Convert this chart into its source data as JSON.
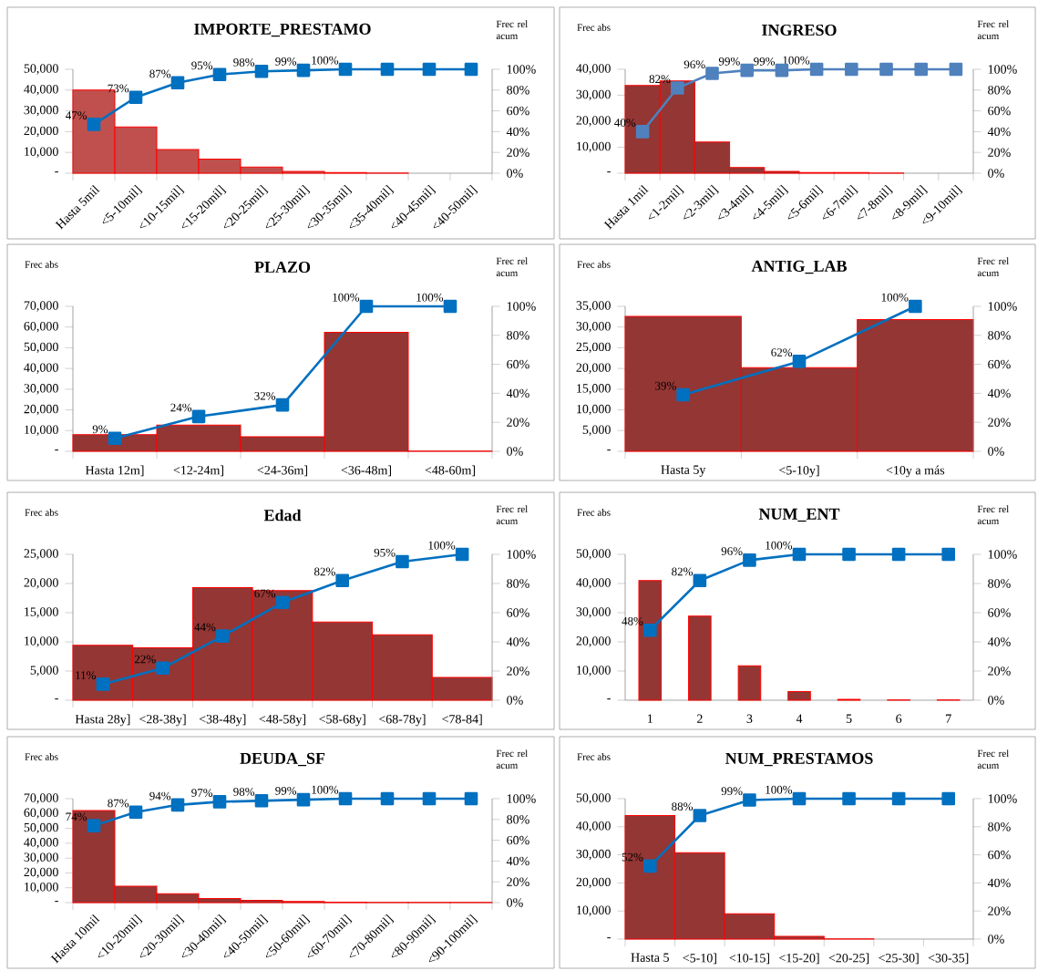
{
  "chart_data": [
    {
      "type": "bar",
      "title": "IMPORTE_PRESTAMO",
      "y2label": "Frec rel acum",
      "marker": "square",
      "categories": [
        "Hasta 5mil",
        "<5-10mil]",
        "<10-15mil]",
        "<15-20mil]",
        "<20-25mil]",
        "<25-30mil]",
        "<30-35mil]",
        "<35-40mil]",
        "<40-45mil]",
        "<40-50mil]"
      ],
      "series": [
        {
          "type": "bar",
          "color": "#c0504d",
          "values": [
            40000,
            22300,
            11400,
            6800,
            2900,
            900,
            300,
            100,
            0,
            0
          ]
        },
        {
          "type": "line",
          "axis": "y2",
          "color": "#0070c0",
          "values": [
            47,
            73,
            87,
            95,
            98,
            99,
            100,
            100,
            100,
            100
          ],
          "value_labels": [
            "47%",
            "73%",
            "87%",
            "95%",
            "98%",
            "99%",
            "100%",
            null,
            null,
            null
          ]
        }
      ],
      "ylim": [
        0,
        50000
      ],
      "yticks": [
        {
          "value": 0,
          "label": "-"
        },
        {
          "value": 10000,
          "label": "10,000"
        },
        {
          "value": 20000,
          "label": "20,000"
        },
        {
          "value": 30000,
          "label": "30,000"
        },
        {
          "value": 40000,
          "label": "40,000"
        },
        {
          "value": 50000,
          "label": "50,000"
        }
      ],
      "y2lim": [
        0,
        100
      ],
      "y2ticks": [
        {
          "value": 0,
          "label": "0%"
        },
        {
          "value": 20,
          "label": "20%"
        },
        {
          "value": 40,
          "label": "40%"
        },
        {
          "value": 60,
          "label": "60%"
        },
        {
          "value": 80,
          "label": "80%"
        },
        {
          "value": 100,
          "label": "100%"
        }
      ]
    },
    {
      "type": "bar",
      "title": "INGRESO",
      "ylabel": "Frec abs",
      "y2label": "Frec rel acum",
      "marker": "square",
      "categories": [
        "Hasta 1mil",
        "<1-2mil]",
        "<2-3mil]",
        "<3-4mil]",
        "<4-5mil]",
        "<5-6mil]",
        "<6-7mil]",
        "<7-8mil]",
        "<8-9mil]",
        "<9-10mil]"
      ],
      "series": [
        {
          "type": "bar",
          "color": "#943634",
          "values": [
            33800,
            35500,
            12000,
            2200,
            700,
            300,
            300,
            100,
            0,
            0
          ]
        },
        {
          "type": "line",
          "axis": "y2",
          "color": "#4f81bd",
          "values": [
            40,
            82,
            96,
            99,
            99,
            100,
            100,
            100,
            100,
            100
          ],
          "value_labels": [
            "40%",
            "82%",
            "96%",
            "99%",
            "99%",
            "100%",
            null,
            null,
            null,
            null
          ]
        }
      ],
      "ylim": [
        0,
        40000
      ],
      "yticks": [
        {
          "value": 0,
          "label": "-"
        },
        {
          "value": 10000,
          "label": "10,000"
        },
        {
          "value": 20000,
          "label": "20,000"
        },
        {
          "value": 30000,
          "label": "30,000"
        },
        {
          "value": 40000,
          "label": "40,000"
        }
      ],
      "y2lim": [
        0,
        100
      ],
      "y2ticks": [
        {
          "value": 0,
          "label": "0%"
        },
        {
          "value": 20,
          "label": "20%"
        },
        {
          "value": 40,
          "label": "40%"
        },
        {
          "value": 60,
          "label": "60%"
        },
        {
          "value": 80,
          "label": "80%"
        },
        {
          "value": 100,
          "label": "100%"
        }
      ]
    },
    {
      "type": "bar",
      "title": "PLAZO",
      "ylabel": "Frec abs",
      "y2label": "Frec rel acum",
      "marker": "square",
      "categories": [
        "Hasta 12m]",
        "<12-24m]",
        "<24-36m]",
        "<36-48m]",
        "<48-60m]"
      ],
      "series": [
        {
          "type": "bar",
          "color": "#943634",
          "values": [
            8000,
            12700,
            7000,
            57500,
            100
          ]
        },
        {
          "type": "line",
          "axis": "y2",
          "color": "#0070c0",
          "values": [
            9,
            24,
            32,
            100,
            100
          ],
          "value_labels": [
            "9%",
            "24%",
            "32%",
            "100%",
            "100%"
          ]
        }
      ],
      "ylim": [
        0,
        70000
      ],
      "yticks": [
        {
          "value": 0,
          "label": "-"
        },
        {
          "value": 10000,
          "label": "10,000"
        },
        {
          "value": 20000,
          "label": "20,000"
        },
        {
          "value": 30000,
          "label": "30,000"
        },
        {
          "value": 40000,
          "label": "40,000"
        },
        {
          "value": 50000,
          "label": "50,000"
        },
        {
          "value": 60000,
          "label": "60,000"
        },
        {
          "value": 70000,
          "label": "70,000"
        }
      ],
      "y2lim": [
        0,
        100
      ],
      "y2ticks": [
        {
          "value": 0,
          "label": "0%"
        },
        {
          "value": 20,
          "label": "20%"
        },
        {
          "value": 40,
          "label": "40%"
        },
        {
          "value": 60,
          "label": "60%"
        },
        {
          "value": 80,
          "label": "80%"
        },
        {
          "value": 100,
          "label": "100%"
        }
      ]
    },
    {
      "type": "bar",
      "title": "ANTIG_LAB",
      "ylabel": "Frec abs",
      "y2label": "Frec rel acum",
      "marker": "square",
      "categories": [
        "Hasta 5y",
        "<5-10y]",
        "<10y a más"
      ],
      "series": [
        {
          "type": "bar",
          "color": "#943634",
          "values": [
            32600,
            20200,
            31800
          ]
        },
        {
          "type": "line",
          "axis": "y2",
          "color": "#0070c0",
          "values": [
            39,
            62,
            100
          ],
          "value_labels": [
            "39%",
            "62%",
            "100%"
          ]
        }
      ],
      "ylim": [
        0,
        35000
      ],
      "yticks": [
        {
          "value": 0,
          "label": "-"
        },
        {
          "value": 5000,
          "label": "5,000"
        },
        {
          "value": 10000,
          "label": "10,000"
        },
        {
          "value": 15000,
          "label": "15,000"
        },
        {
          "value": 20000,
          "label": "20,000"
        },
        {
          "value": 25000,
          "label": "25,000"
        },
        {
          "value": 30000,
          "label": "30,000"
        },
        {
          "value": 35000,
          "label": "35,000"
        }
      ],
      "y2lim": [
        0,
        100
      ],
      "y2ticks": [
        {
          "value": 0,
          "label": "0%"
        },
        {
          "value": 20,
          "label": "20%"
        },
        {
          "value": 40,
          "label": "40%"
        },
        {
          "value": 60,
          "label": "60%"
        },
        {
          "value": 80,
          "label": "80%"
        },
        {
          "value": 100,
          "label": "100%"
        }
      ]
    },
    {
      "type": "bar",
      "title": "Edad",
      "ylabel": "Frec abs",
      "y2label": "Frec rel acum",
      "marker": "square",
      "categories": [
        "Hasta 28y]",
        "<28-38y]",
        "<38-48y]",
        "<48-58y]",
        "<58-68y]",
        "<68-78y]",
        "<78-84]"
      ],
      "series": [
        {
          "type": "bar",
          "color": "#943634",
          "values": [
            9400,
            9000,
            19300,
            18800,
            13400,
            11200,
            3900
          ]
        },
        {
          "type": "line",
          "axis": "y2",
          "color": "#0070c0",
          "values": [
            11,
            22,
            44,
            67,
            82,
            95,
            100
          ],
          "value_labels": [
            "11%",
            "22%",
            "44%",
            "67%",
            "82%",
            "95%",
            "100%"
          ]
        }
      ],
      "ylim": [
        0,
        25000
      ],
      "yticks": [
        {
          "value": 0,
          "label": "-"
        },
        {
          "value": 5000,
          "label": "5,000"
        },
        {
          "value": 10000,
          "label": "10,000"
        },
        {
          "value": 15000,
          "label": "15,000"
        },
        {
          "value": 20000,
          "label": "20,000"
        },
        {
          "value": 25000,
          "label": "25,000"
        }
      ],
      "y2lim": [
        0,
        100
      ],
      "y2ticks": [
        {
          "value": 0,
          "label": "0%"
        },
        {
          "value": 20,
          "label": "20%"
        },
        {
          "value": 40,
          "label": "40%"
        },
        {
          "value": 60,
          "label": "60%"
        },
        {
          "value": 80,
          "label": "80%"
        },
        {
          "value": 100,
          "label": "100%"
        }
      ]
    },
    {
      "type": "bar",
      "title": "NUM_ENT",
      "ylabel": "Frec abs",
      "y2label": "Frec rel acum",
      "marker": "square",
      "x": [
        1,
        2,
        3,
        4,
        5,
        6,
        7
      ],
      "xlim": [
        0.5,
        7.5
      ],
      "xticks": [
        1,
        2,
        3,
        4,
        5,
        6,
        7
      ],
      "series": [
        {
          "type": "bar",
          "color": "#943634",
          "values": [
            41000,
            28800,
            11800,
            3000,
            300,
            100,
            100
          ]
        },
        {
          "type": "line",
          "axis": "y2",
          "color": "#0070c0",
          "values": [
            48,
            82,
            96,
            100,
            100,
            100,
            100
          ],
          "value_labels": [
            "48%",
            "82%",
            "96%",
            "100%",
            null,
            null,
            null
          ]
        }
      ],
      "ylim": [
        0,
        50000
      ],
      "yticks": [
        {
          "value": 0,
          "label": "-"
        },
        {
          "value": 10000,
          "label": "10,000"
        },
        {
          "value": 20000,
          "label": "20,000"
        },
        {
          "value": 30000,
          "label": "30,000"
        },
        {
          "value": 40000,
          "label": "40,000"
        },
        {
          "value": 50000,
          "label": "50,000"
        }
      ],
      "y2lim": [
        0,
        100
      ],
      "y2ticks": [
        {
          "value": 0,
          "label": "0%"
        },
        {
          "value": 20,
          "label": "20%"
        },
        {
          "value": 40,
          "label": "40%"
        },
        {
          "value": 60,
          "label": "60%"
        },
        {
          "value": 80,
          "label": "80%"
        },
        {
          "value": 100,
          "label": "100%"
        }
      ]
    },
    {
      "type": "bar",
      "title": "DEUDA_SF",
      "ylabel": "Frec abs",
      "y2label": "Frec rel acum",
      "marker": "square",
      "categories": [
        "Hasta 10mil",
        "<10-20mil]",
        "<20-30mil]",
        "<30-40mil]",
        "<40-50mil]",
        "<50-60mil]",
        "<60-70mil]",
        "<70-80mil]",
        "<80-90mil]",
        "<90-100mil]"
      ],
      "series": [
        {
          "type": "bar",
          "color": "#943634",
          "values": [
            62000,
            11000,
            6000,
            2700,
            1500,
            800,
            300,
            200,
            100,
            100
          ]
        },
        {
          "type": "line",
          "axis": "y2",
          "color": "#0070c0",
          "values": [
            74,
            87,
            94,
            97,
            98,
            99,
            100,
            100,
            100,
            100
          ],
          "value_labels": [
            "74%",
            "87%",
            "94%",
            "97%",
            "98%",
            "99%",
            "100%",
            null,
            null,
            null
          ]
        }
      ],
      "ylim": [
        0,
        70000
      ],
      "yticks": [
        {
          "value": 0,
          "label": "-"
        },
        {
          "value": 10000,
          "label": "10,000"
        },
        {
          "value": 20000,
          "label": "20,000"
        },
        {
          "value": 30000,
          "label": "30,000"
        },
        {
          "value": 40000,
          "label": "40,000"
        },
        {
          "value": 50000,
          "label": "50,000"
        },
        {
          "value": 60000,
          "label": "60,000"
        },
        {
          "value": 70000,
          "label": "70,000"
        }
      ],
      "y2lim": [
        0,
        100
      ],
      "y2ticks": [
        {
          "value": 0,
          "label": "0%"
        },
        {
          "value": 20,
          "label": "20%"
        },
        {
          "value": 40,
          "label": "40%"
        },
        {
          "value": 60,
          "label": "60%"
        },
        {
          "value": 80,
          "label": "80%"
        },
        {
          "value": 100,
          "label": "100%"
        }
      ]
    },
    {
      "type": "bar",
      "title": "NUM_PRESTAMOS",
      "ylabel": "Frec abs",
      "y2label": "Frec rel acum",
      "marker": "square",
      "categories": [
        "Hasta 5",
        "<5-10]",
        "<10-15]",
        "<15-20]",
        "<20-25]",
        "<25-30]",
        "<30-35]"
      ],
      "series": [
        {
          "type": "bar",
          "color": "#943634",
          "values": [
            44000,
            30800,
            9000,
            1000,
            100,
            0,
            0
          ]
        },
        {
          "type": "line",
          "axis": "y2",
          "color": "#0070c0",
          "values": [
            52,
            88,
            99,
            100,
            100,
            100,
            100
          ],
          "value_labels": [
            "52%",
            "88%",
            "99%",
            "100%",
            null,
            null,
            null
          ]
        }
      ],
      "ylim": [
        0,
        50000
      ],
      "yticks": [
        {
          "value": 0,
          "label": "-"
        },
        {
          "value": 10000,
          "label": "10,000"
        },
        {
          "value": 20000,
          "label": "20,000"
        },
        {
          "value": 30000,
          "label": "30,000"
        },
        {
          "value": 40000,
          "label": "40,000"
        },
        {
          "value": 50000,
          "label": "50,000"
        }
      ],
      "y2lim": [
        0,
        100
      ],
      "y2ticks": [
        {
          "value": 0,
          "label": "0%"
        },
        {
          "value": 20,
          "label": "20%"
        },
        {
          "value": 40,
          "label": "40%"
        },
        {
          "value": 60,
          "label": "60%"
        },
        {
          "value": 80,
          "label": "80%"
        },
        {
          "value": 100,
          "label": "100%"
        }
      ]
    }
  ]
}
